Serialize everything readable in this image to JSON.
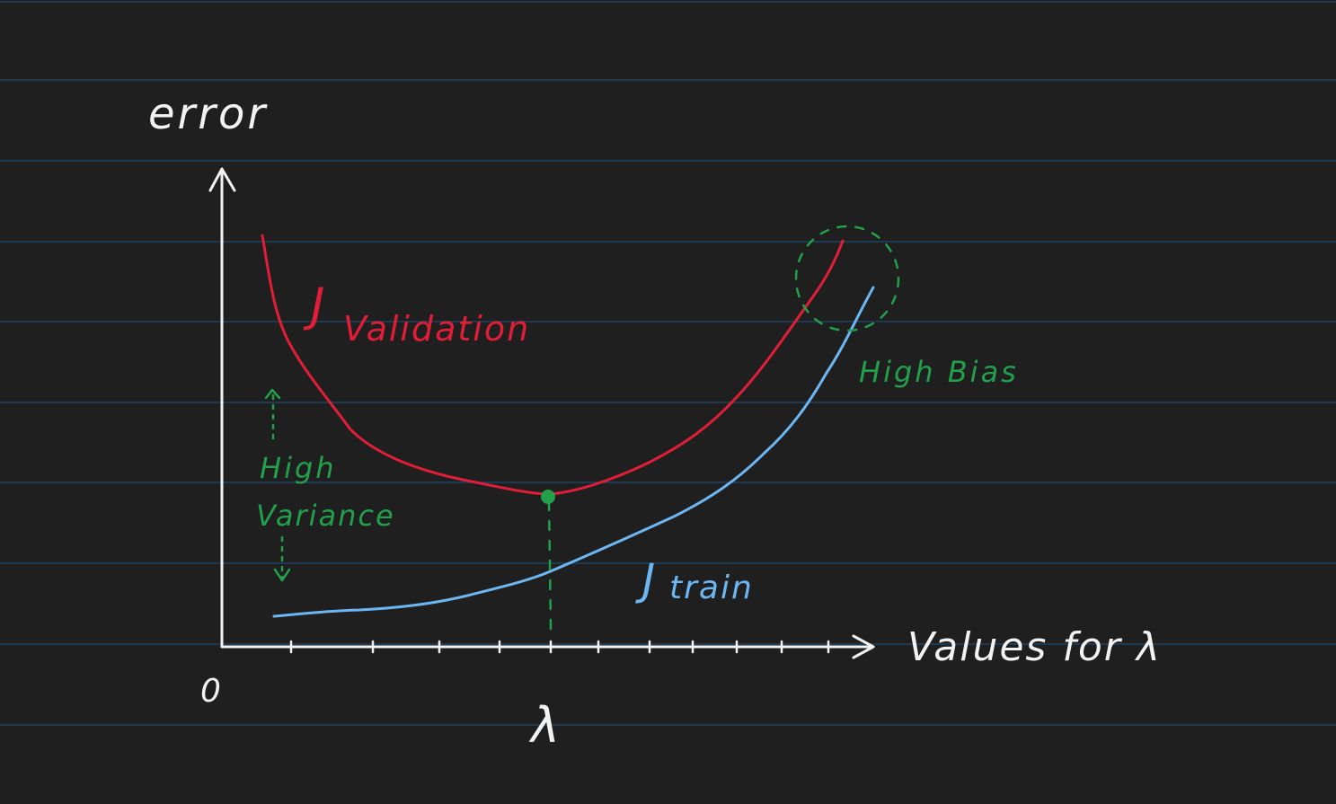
{
  "colors": {
    "background": "#1f1f1f",
    "ruled_line": "#1e3a52",
    "ink_white": "#f2f2f2",
    "validation_red": "#e01e37",
    "train_blue": "#6cb6f2",
    "annotation_green": "#22a04b"
  },
  "axes": {
    "y_label": "error",
    "x_label": "Values for λ",
    "origin_label": "0",
    "lambda_mark_label": "λ"
  },
  "curves": {
    "validation_label_main": "J",
    "validation_label_sub": "Validation",
    "train_label_main": "J",
    "train_label_sub": "train"
  },
  "annotations": {
    "high_variance_line1": "High",
    "high_variance_line2": "Variance",
    "high_bias": "High Bias"
  },
  "icons": {
    "y_axis_arrow": "arrow-up-icon",
    "x_axis_arrow": "arrow-right-icon",
    "optimum_marker": "dot-icon"
  }
}
